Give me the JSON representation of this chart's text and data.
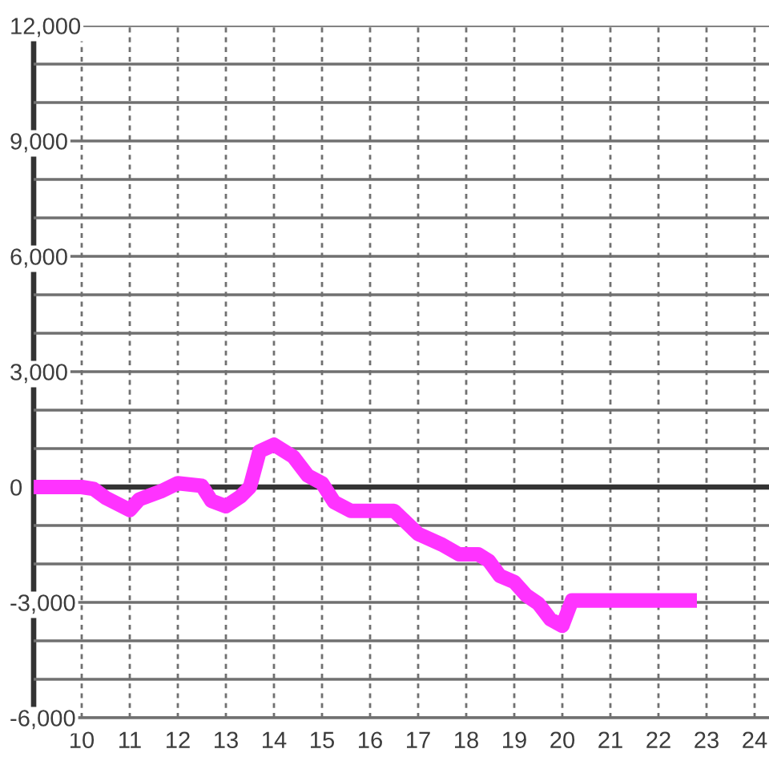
{
  "chart_data": {
    "type": "line",
    "x": [
      9.0,
      10.0,
      10.25,
      10.5,
      11.0,
      11.2,
      11.65,
      12.0,
      12.5,
      12.7,
      13.0,
      13.3,
      13.5,
      13.7,
      14.0,
      14.4,
      14.7,
      15.0,
      15.25,
      15.6,
      16.5,
      17.0,
      17.5,
      17.85,
      18.25,
      18.47,
      18.7,
      19.0,
      19.25,
      19.5,
      19.75,
      20.0,
      20.2,
      22.8
    ],
    "values": [
      0,
      0,
      -50,
      -280,
      -600,
      -320,
      -110,
      100,
      30,
      -360,
      -500,
      -250,
      0,
      930,
      1100,
      790,
      300,
      100,
      -390,
      -620,
      -620,
      -1220,
      -1500,
      -1750,
      -1750,
      -1920,
      -2310,
      -2470,
      -2820,
      -3030,
      -3440,
      -3610,
      -2950,
      -2950
    ],
    "color": "#ff33ff",
    "xlim": [
      9,
      24.3
    ],
    "xticks": [
      10,
      11,
      12,
      13,
      14,
      15,
      16,
      17,
      18,
      19,
      20,
      21,
      22,
      23,
      24
    ],
    "ylim": [
      -6000,
      12000
    ],
    "yticks": [
      {
        "value": -6000,
        "label": "-6,000"
      },
      {
        "value": -5000,
        "label": null
      },
      {
        "value": -4000,
        "label": null
      },
      {
        "value": -3000,
        "label": "-3,000"
      },
      {
        "value": -2000,
        "label": null
      },
      {
        "value": -1000,
        "label": null
      },
      0,
      {
        "value": 1000,
        "label": null
      },
      {
        "value": 2000,
        "label": null
      },
      {
        "value": 3000,
        "label": "3,000"
      },
      {
        "value": 4000,
        "label": null
      },
      {
        "value": 5000,
        "label": null
      },
      {
        "value": 6000,
        "label": "6,000"
      },
      {
        "value": 7000,
        "label": null
      },
      {
        "value": 8000,
        "label": null
      },
      {
        "value": 9000,
        "label": "9,000"
      },
      {
        "value": 10000,
        "label": null
      },
      {
        "value": 11000,
        "label": null
      },
      {
        "value": 12000,
        "label": "12,000"
      }
    ],
    "grid": true,
    "ref_lines": [
      {
        "axis": "y",
        "value": 0,
        "color": "#333333"
      }
    ]
  }
}
